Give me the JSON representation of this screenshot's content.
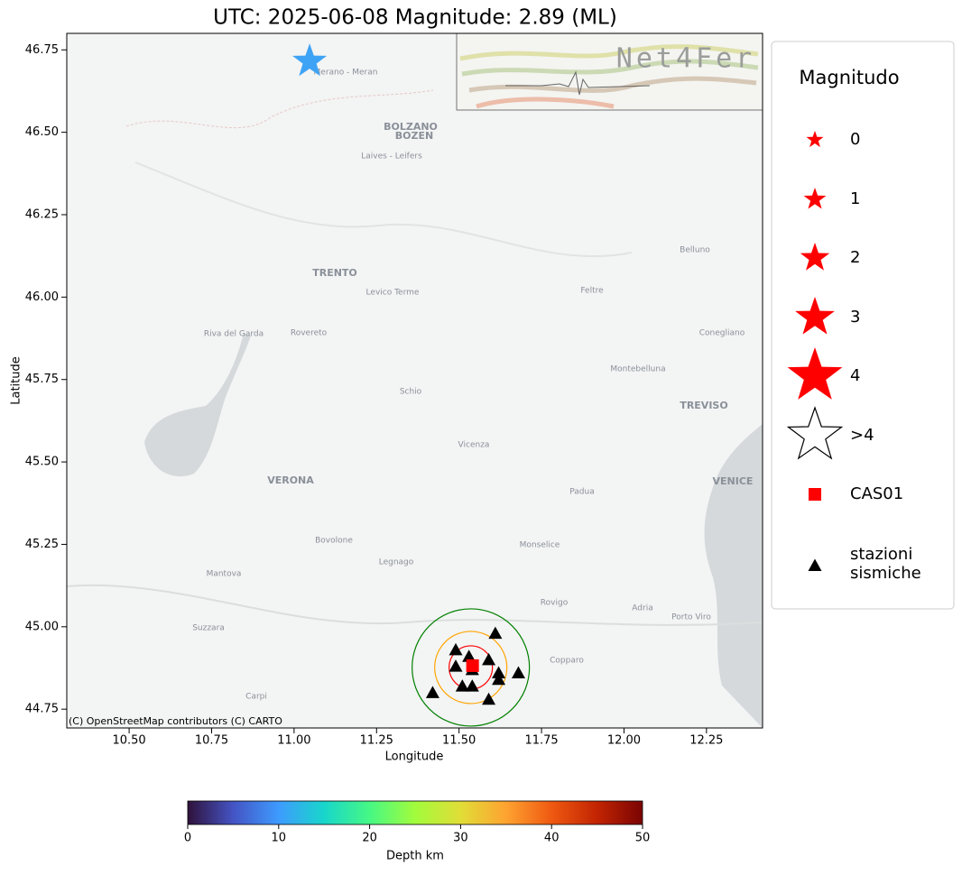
{
  "chart_data": {
    "type": "map",
    "title": "UTC: 2025-06-08 Magnitude: 2.89 (ML)",
    "x_label": "Longitude",
    "y_label": "Latitude",
    "xlim": [
      10.311,
      12.42
    ],
    "ylim": [
      44.693,
      46.8
    ],
    "xticks": [
      {
        "value": 10.5,
        "label": "10.50"
      },
      {
        "value": 10.75,
        "label": "10.75"
      },
      {
        "value": 11.0,
        "label": "11.00"
      },
      {
        "value": 11.25,
        "label": "11.25"
      },
      {
        "value": 11.5,
        "label": "11.50"
      },
      {
        "value": 11.75,
        "label": "11.75"
      },
      {
        "value": 12.0,
        "label": "12.00"
      },
      {
        "value": 12.25,
        "label": "12.25"
      }
    ],
    "yticks": [
      {
        "value": 44.75,
        "label": "44.75"
      },
      {
        "value": 45.0,
        "label": "45.00"
      },
      {
        "value": 45.25,
        "label": "45.25"
      },
      {
        "value": 45.5,
        "label": "45.50"
      },
      {
        "value": 45.75,
        "label": "45.75"
      },
      {
        "value": 46.0,
        "label": "46.00"
      },
      {
        "value": 46.25,
        "label": "46.25"
      },
      {
        "value": 46.5,
        "label": "46.50"
      },
      {
        "value": 46.75,
        "label": "46.75"
      }
    ],
    "event": {
      "lon": 11.047,
      "lat": 46.715,
      "color": "#3fa3f5"
    },
    "reference_station": {
      "lon": 11.541,
      "lat": 44.882,
      "color": "#ff0000"
    },
    "stations": {
      "color": "#000000",
      "lon": [
        11.61,
        11.49,
        11.53,
        11.59,
        11.49,
        11.54,
        11.62,
        11.68,
        11.62,
        11.51,
        11.54,
        11.42,
        11.59
      ],
      "lat": [
        44.98,
        44.93,
        44.91,
        44.9,
        44.88,
        44.87,
        44.86,
        44.86,
        44.84,
        44.82,
        44.82,
        44.8,
        44.78
      ]
    },
    "legend": {
      "title": "Magnitudo",
      "entries": [
        "0",
        "1",
        "2",
        "3",
        "4",
        ">4",
        "CAS01",
        "stazioni sismiche"
      ]
    },
    "colorbar": {
      "label": "Depth km",
      "lim": [
        0,
        50
      ],
      "ticks": [
        0,
        10,
        20,
        30,
        40,
        50
      ],
      "colormap": "turbo"
    },
    "attribution": "(C) OpenStreetMap contributors (C) CARTO",
    "logo": "Net4Fer",
    "map_labels": [
      "Merano - Meran",
      "BOLZANO",
      "BOZEN",
      "Laives - Leifers",
      "TRENTO",
      "Levico Terme",
      "Rovereto",
      "Riva del Garda",
      "Schio",
      "Feltre",
      "Belluno",
      "Montebelluna",
      "Conegliano",
      "TREVISO",
      "Vicenza",
      "VERONA",
      "Padua",
      "VENICE",
      "Bovolone",
      "Legnago",
      "Monselice",
      "Mantova",
      "Rovigo",
      "Adria",
      "Porto Viro",
      "Suzzara",
      "Carpi",
      "Copparo"
    ]
  }
}
